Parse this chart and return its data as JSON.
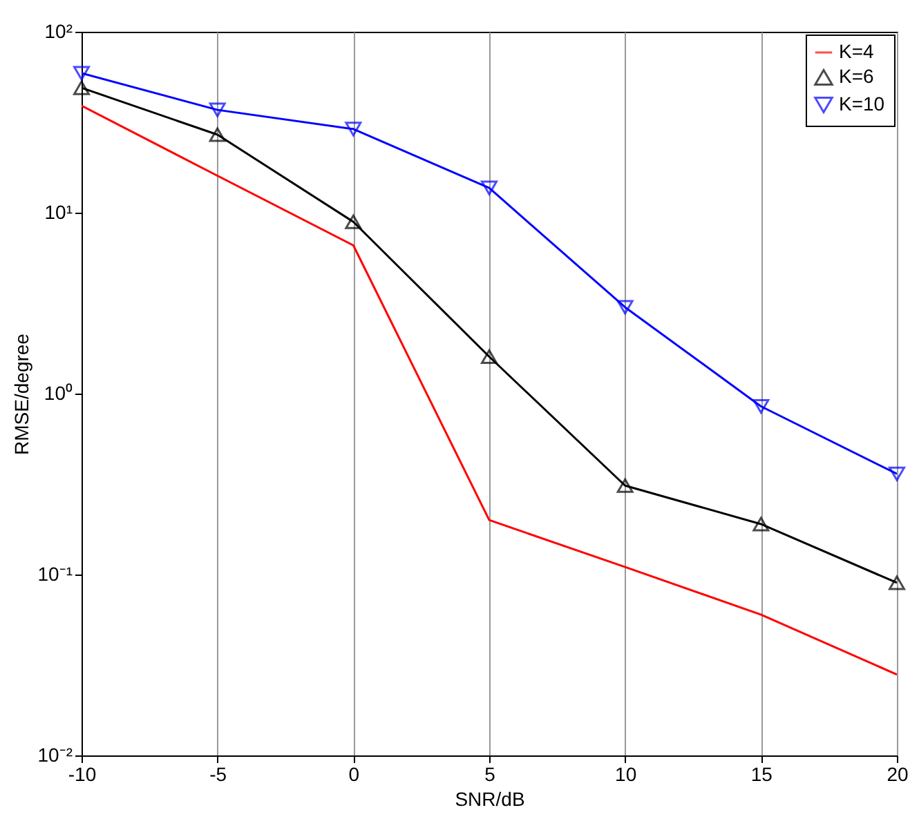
{
  "chart_data": {
    "type": "line",
    "xlabel": "SNR/dB",
    "ylabel": "RMSE/degree",
    "x": [
      -10,
      -5,
      0,
      5,
      10,
      15,
      20
    ],
    "series": [
      {
        "name": "K=4",
        "color": "#ff0000",
        "marker": "none",
        "values": [
          39,
          16,
          6.6,
          0.2,
          0.11,
          0.06,
          0.028
        ]
      },
      {
        "name": "K=6",
        "color": "#000000",
        "marker": "triangle",
        "values": [
          49,
          27,
          8.9,
          1.6,
          0.31,
          0.19,
          0.09
        ]
      },
      {
        "name": "K=10",
        "color": "#0000ff",
        "marker": "triangle-down",
        "values": [
          59,
          37,
          29,
          13.7,
          3.0,
          0.85,
          0.36
        ]
      }
    ],
    "log": "y",
    "grid": "x",
    "legend": "top right",
    "xlim": [
      -10,
      20
    ],
    "xticks": [
      -10,
      -5,
      0,
      5,
      10,
      15,
      20
    ],
    "ylim": [
      0.01,
      100
    ],
    "yticks": [
      {
        "value": 0.01,
        "label": "10⁻²"
      },
      {
        "value": 0.1,
        "label": "10⁻¹"
      },
      {
        "value": 1,
        "label": "10⁰"
      },
      {
        "value": 10,
        "label": "10¹"
      },
      {
        "value": 100,
        "label": "10²"
      }
    ]
  }
}
